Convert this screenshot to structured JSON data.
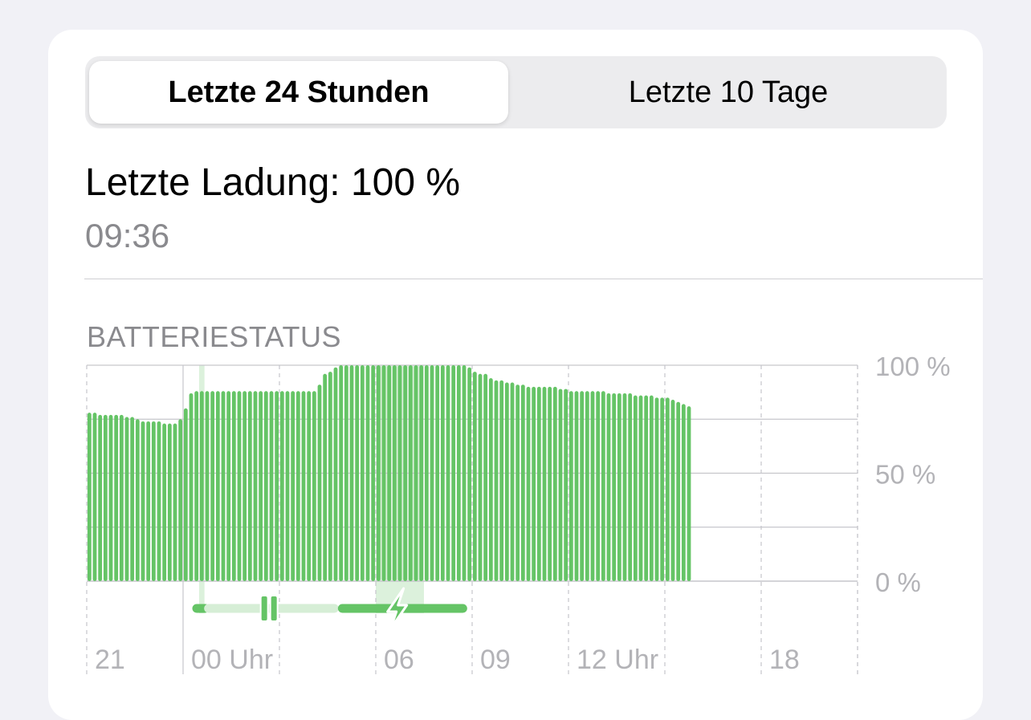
{
  "tabs": [
    {
      "label": "Letzte 24 Stunden",
      "selected": true
    },
    {
      "label": "Letzte 10 Tage",
      "selected": false
    }
  ],
  "last_charge": {
    "title": "Letzte Ladung: 100 %",
    "time": "09:36"
  },
  "section_label": "BATTERIESTATUS",
  "colors": {
    "bar": "#65c466",
    "charging_band": "#dcf1dc",
    "grid": "#c6c6cb",
    "axis_text": "#b3b3b7"
  },
  "chart_data": {
    "type": "bar",
    "title": "",
    "xlabel": "",
    "ylabel": "",
    "ylim": [
      0,
      100
    ],
    "y_ticks": [
      "100 %",
      "50 %",
      "0 %"
    ],
    "x_ticks": [
      "21",
      "00 Uhr",
      "06",
      "09",
      "12 Uhr",
      "18"
    ],
    "x_range_hours": [
      21,
      45
    ],
    "bar_interval_minutes": 10,
    "start_time": "21:00",
    "values": [
      78,
      78,
      77,
      77,
      77,
      77,
      77,
      76,
      76,
      75,
      74,
      74,
      74,
      74,
      73,
      73,
      73,
      75,
      80,
      87,
      88,
      88,
      88,
      88,
      88,
      88,
      88,
      88,
      88,
      88,
      88,
      88,
      88,
      88,
      88,
      88,
      88,
      88,
      88,
      88,
      88,
      88,
      88,
      91,
      96,
      97,
      99,
      100,
      100,
      100,
      100,
      100,
      100,
      100,
      100,
      100,
      100,
      100,
      100,
      100,
      100,
      100,
      100,
      100,
      100,
      100,
      100,
      100,
      100,
      100,
      100,
      99,
      97,
      96,
      96,
      94,
      93,
      93,
      92,
      92,
      91,
      91,
      90,
      90,
      90,
      90,
      90,
      90,
      89,
      89,
      88,
      88,
      88,
      88,
      88,
      88,
      88,
      87,
      87,
      87,
      87,
      87,
      86,
      86,
      86,
      86,
      85,
      85,
      85,
      84,
      83,
      82,
      81
    ],
    "charging_periods": [
      [
        "00:30",
        "00:40"
      ],
      [
        "06:00",
        "07:30"
      ]
    ],
    "status_bar": {
      "segments": [
        {
          "start": "00:30",
          "end": "00:33",
          "state": "charging"
        },
        {
          "start": "00:34",
          "end": "00:37",
          "state": "charging"
        },
        {
          "start": "00:40",
          "end": "04:50",
          "state": "paused"
        },
        {
          "start": "04:50",
          "end": "08:50",
          "state": "charging"
        }
      ],
      "icons": [
        {
          "name": "pause-icon",
          "at": "02:40"
        },
        {
          "name": "lightning-bolt-icon",
          "at": "06:40"
        }
      ]
    }
  }
}
